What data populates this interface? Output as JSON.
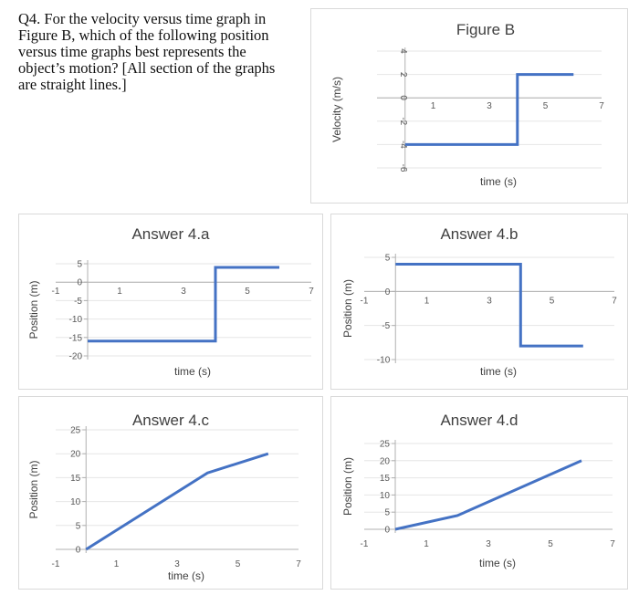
{
  "question": {
    "text": "Q4. For the velocity versus time graph in Figure B, which of the following position versus time graphs best represents the object’s motion? [All section of the graphs are straight lines.]"
  },
  "colors": {
    "series": "#4472c4",
    "panel_border": "#d9d9d9"
  },
  "chart_data": [
    {
      "id": "figB",
      "type": "line",
      "title": "Figure B",
      "xlabel": "time (s)",
      "ylabel": "Velocity (m/s)",
      "xlim": [
        -1,
        7
      ],
      "ylim": [
        -6,
        4
      ],
      "xticks": [
        1,
        3,
        5,
        7
      ],
      "yticks": [
        4,
        2,
        0,
        -2,
        -4,
        -6
      ],
      "x_tick_labels": [
        "1",
        "3",
        "5",
        "7"
      ],
      "y_tick_labels": [
        "4",
        "2",
        "0",
        "-2",
        "-4",
        "-6"
      ],
      "y_tick_rotated": true,
      "x": [
        0,
        4,
        4,
        6
      ],
      "y": [
        -4,
        -4,
        2,
        2
      ]
    },
    {
      "id": "ansA",
      "type": "line",
      "title": "Answer 4.a",
      "xlabel": "time (s)",
      "ylabel": "Position (m)",
      "xlim": [
        -1,
        7
      ],
      "ylim": [
        -20,
        5
      ],
      "xticks": [
        -1,
        1,
        3,
        5,
        7
      ],
      "yticks": [
        5,
        0,
        -5,
        -10,
        -15,
        -20
      ],
      "x_tick_labels": [
        "-1",
        "1",
        "3",
        "5",
        "7"
      ],
      "y_tick_labels": [
        "5",
        "0",
        "-5",
        "-10",
        "-15",
        "-20"
      ],
      "y_tick_rotated": false,
      "x": [
        0,
        4,
        4,
        6
      ],
      "y": [
        -16,
        -16,
        4,
        4
      ]
    },
    {
      "id": "ansB",
      "type": "line",
      "title": "Answer 4.b",
      "xlabel": "time (s)",
      "ylabel": "Position (m)",
      "xlim": [
        -1,
        7
      ],
      "ylim": [
        -10,
        5
      ],
      "xticks": [
        -1,
        1,
        3,
        5,
        7
      ],
      "yticks": [
        5,
        0,
        -5,
        -10
      ],
      "x_tick_labels": [
        "-1",
        "1",
        "3",
        "5",
        "7"
      ],
      "y_tick_labels": [
        "5",
        "0",
        "-5",
        "-10"
      ],
      "y_tick_rotated": false,
      "x": [
        0,
        4,
        4,
        6
      ],
      "y": [
        4,
        4,
        -8,
        -8
      ]
    },
    {
      "id": "ansC",
      "type": "line",
      "title": "Answer 4.c",
      "xlabel": "time (s)",
      "ylabel": "Position (m)",
      "xlim": [
        -1,
        7
      ],
      "ylim": [
        0,
        25
      ],
      "xticks": [
        -1,
        1,
        3,
        5,
        7
      ],
      "yticks": [
        25,
        20,
        15,
        10,
        5,
        0
      ],
      "x_tick_labels": [
        "-1",
        "1",
        "3",
        "5",
        "7"
      ],
      "y_tick_labels": [
        "25",
        "20",
        "15",
        "10",
        "5",
        "0"
      ],
      "y_tick_rotated": false,
      "x": [
        0,
        4,
        6
      ],
      "y": [
        0,
        16,
        20
      ]
    },
    {
      "id": "ansD",
      "type": "line",
      "title": "Answer 4.d",
      "xlabel": "time (s)",
      "ylabel": "Position (m)",
      "xlim": [
        -1,
        7
      ],
      "ylim": [
        0,
        25
      ],
      "xticks": [
        -1,
        1,
        3,
        5,
        7
      ],
      "yticks": [
        25,
        20,
        15,
        10,
        5,
        0
      ],
      "x_tick_labels": [
        "-1",
        "1",
        "3",
        "5",
        "7"
      ],
      "y_tick_labels": [
        "25",
        "20",
        "15",
        "10",
        "5",
        "0"
      ],
      "y_tick_rotated": false,
      "x": [
        0,
        2,
        6
      ],
      "y": [
        0,
        4,
        20
      ]
    }
  ]
}
